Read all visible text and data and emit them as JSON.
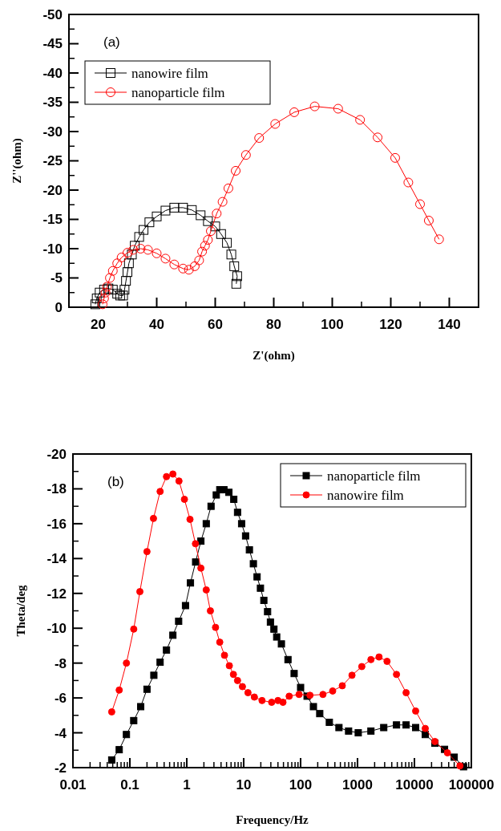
{
  "chart_data": [
    {
      "type": "line",
      "xlabel": "Z'(ohm)",
      "ylabel": "Z''(ohm)",
      "annotations": [
        "(a)"
      ],
      "xlim": [
        10,
        150
      ],
      "xticks": [
        20,
        40,
        60,
        80,
        100,
        120,
        140
      ],
      "ylim": [
        0,
        -50
      ],
      "yticks": [
        0,
        -5,
        -10,
        -15,
        -20,
        -25,
        -30,
        -35,
        -40,
        -45,
        -50
      ],
      "legend": "top left",
      "grid": false,
      "line_style": "solid",
      "series": [
        {
          "name": "nanowire film",
          "color": "#000000",
          "marker": "square",
          "x": [
            19,
            19.5,
            20.5,
            22,
            23.5,
            25,
            26.5,
            27.5,
            28.5,
            29,
            29.5,
            30,
            30.5,
            31.5,
            32.5,
            34,
            35.5,
            37.5,
            40,
            43,
            46,
            49,
            52,
            55,
            57.5,
            60,
            62,
            64,
            65.5,
            66.5,
            67.5,
            67.2
          ],
          "values": [
            -0.5,
            -1.5,
            -2.5,
            -3,
            -3.2,
            -3,
            -2.3,
            -2,
            -2,
            -3,
            -4.5,
            -6,
            -7.5,
            -9,
            -10.5,
            -12,
            -13.2,
            -14.5,
            -15.5,
            -16.5,
            -17,
            -17,
            -16.6,
            -15.7,
            -14.7,
            -13.8,
            -12.5,
            -11,
            -9,
            -7,
            -5.3,
            -4
          ]
        },
        {
          "name": "nanoparticle film",
          "color": "#ff0000",
          "marker": "circle",
          "x": [
            21.5,
            22,
            22.5,
            23,
            24,
            25,
            26.5,
            28,
            30,
            32,
            34.5,
            37,
            40,
            43,
            46,
            49,
            51,
            53,
            54.5,
            55.5,
            56.5,
            57.5,
            58.5,
            60.5,
            62.5,
            64.5,
            67,
            70.5,
            75,
            80.5,
            87,
            94,
            102,
            109.5,
            115.5,
            121.5,
            126,
            130,
            133,
            136.5
          ],
          "values": [
            -0.5,
            -1.5,
            -2.5,
            -3.5,
            -5,
            -6.2,
            -7.5,
            -8.5,
            -9.3,
            -9.8,
            -10,
            -9.8,
            -9.2,
            -8.3,
            -7.3,
            -6.6,
            -6.4,
            -7,
            -8,
            -9.5,
            -10.5,
            -11.5,
            -13,
            -16,
            -18,
            -20.3,
            -23.3,
            -26,
            -28.9,
            -31.3,
            -33.3,
            -34.3,
            -33.9,
            -32,
            -29,
            -25.5,
            -21.3,
            -17.6,
            -14.8,
            -11.6
          ]
        }
      ]
    },
    {
      "type": "line",
      "xlabel": "Frequency/Hz",
      "ylabel": "Theta/deg",
      "annotations": [
        "(b)"
      ],
      "log": "x",
      "xlim": [
        0.01,
        100000
      ],
      "xticks": [
        0.01,
        0.1,
        1,
        10,
        100,
        1000,
        10000,
        100000
      ],
      "ylim": [
        -2,
        -20
      ],
      "yticks": [
        -2,
        -4,
        -6,
        -8,
        -10,
        -12,
        -14,
        -16,
        -18,
        -20
      ],
      "legend": "top right",
      "grid": false,
      "line_style": "solid",
      "series": [
        {
          "name": "nanoparticle film",
          "color": "#000000",
          "marker": "square",
          "x": [
            0.048,
            0.065,
            0.087,
            0.117,
            0.155,
            0.2,
            0.264,
            0.34,
            0.44,
            0.57,
            0.72,
            0.95,
            1.16,
            1.43,
            1.77,
            2.2,
            2.67,
            3.3,
            3.8,
            4.5,
            5.5,
            6.7,
            7.8,
            9.2,
            10.8,
            12.6,
            14.8,
            17.2,
            19.7,
            22.6,
            26.3,
            29.5,
            34,
            38,
            46,
            60,
            77,
            100,
            130,
            168,
            217,
            320,
            472,
            697,
            1030,
            1720,
            2890,
            4840,
            7140,
            10500,
            15500,
            22900,
            33800,
            50000,
            73000
          ],
          "values": [
            -2.44,
            -3.03,
            -3.9,
            -4.7,
            -5.5,
            -6.5,
            -7.3,
            -8.05,
            -8.75,
            -9.6,
            -10.4,
            -11.3,
            -12.6,
            -13.8,
            -15,
            -16,
            -17,
            -17.65,
            -17.95,
            -17.95,
            -17.8,
            -17.4,
            -16.65,
            -16,
            -15.3,
            -14.5,
            -13.7,
            -12.95,
            -12.3,
            -11.6,
            -10.95,
            -10.35,
            -9.95,
            -9.5,
            -9.1,
            -8.2,
            -7.4,
            -6.6,
            -6.1,
            -5.5,
            -5.1,
            -4.6,
            -4.3,
            -4.1,
            -4,
            -4.1,
            -4.3,
            -4.45,
            -4.45,
            -4.3,
            -3.9,
            -3.4,
            -3.05,
            -2.6,
            -2.05
          ]
        },
        {
          "name": "nanowire film",
          "color": "#ff0000",
          "marker": "circle",
          "x": [
            0.048,
            0.065,
            0.087,
            0.117,
            0.15,
            0.2,
            0.26,
            0.34,
            0.44,
            0.57,
            0.73,
            0.91,
            1.14,
            1.42,
            1.77,
            2.2,
            2.6,
            3.2,
            3.8,
            4.6,
            5.6,
            6.6,
            7.8,
            9.5,
            11.9,
            15.4,
            21,
            31,
            40,
            49,
            63,
            94,
            146,
            247,
            366,
            540,
            800,
            1190,
            1720,
            2390,
            3300,
            4840,
            7140,
            10500,
            15500,
            22900,
            38000,
            63000
          ],
          "values": [
            -5.2,
            -6.45,
            -8,
            -9.95,
            -12.1,
            -14.4,
            -16.3,
            -17.85,
            -18.7,
            -18.85,
            -18.45,
            -17.4,
            -16.25,
            -14.85,
            -13.45,
            -12.2,
            -11,
            -10.05,
            -9.2,
            -8.45,
            -7.85,
            -7.35,
            -7,
            -6.65,
            -6.3,
            -6.05,
            -5.85,
            -5.75,
            -5.85,
            -5.75,
            -6.1,
            -6.2,
            -6.15,
            -6.2,
            -6.4,
            -6.7,
            -7.3,
            -7.8,
            -8.2,
            -8.35,
            -8.1,
            -7.35,
            -6.3,
            -5.25,
            -4.25,
            -3.5,
            -2.85,
            -2.1
          ]
        }
      ]
    }
  ]
}
